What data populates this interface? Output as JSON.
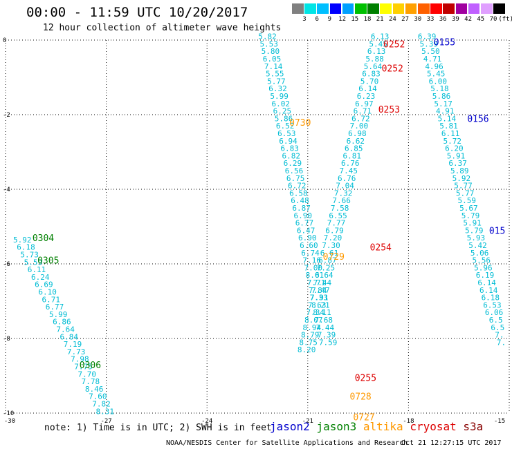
{
  "title": "00:00 - 11:59 UTC 10/20/2017",
  "subtitle": "12 hour collection of altimeter wave heights",
  "legend": {
    "colors": [
      "#808080",
      "#00e5e5",
      "#00bfff",
      "#0000ff",
      "#00a0ff",
      "#00c000",
      "#008000",
      "#ffff00",
      "#ffd000",
      "#ffa000",
      "#ff6000",
      "#ff0000",
      "#c00000",
      "#a000a0",
      "#c060ff",
      "#e0a0ff",
      "#000000"
    ],
    "labels": [
      "3",
      "6",
      "9",
      "12",
      "15",
      "18",
      "21",
      "24",
      "27",
      "30",
      "33",
      "36",
      "39",
      "42",
      "45",
      "70",
      "(ft)"
    ]
  },
  "axes": {
    "x_ticks": [
      -30,
      -27,
      -24,
      -21,
      -18,
      -15
    ],
    "x_tick_labels": [
      "-30",
      "-27",
      "-24",
      "-21",
      "-18",
      "-15"
    ],
    "y_ticks": [
      0,
      -2,
      -4,
      -6,
      -8,
      -10
    ],
    "y_tick_labels": [
      "0",
      "-2",
      "-4",
      "-6",
      "-8",
      "-10"
    ]
  },
  "note": "note: 1) Time is in UTC; 2) SWH is in feet",
  "satellites": [
    {
      "name": "jason2",
      "color": "#0000cc"
    },
    {
      "name": "jason3",
      "color": "#008000"
    },
    {
      "name": "altika",
      "color": "#ff9900"
    },
    {
      "name": "cryosat",
      "color": "#dd0000"
    },
    {
      "name": "s3a",
      "color": "#880000"
    }
  ],
  "footer_left": "NOAA/NESDIS Center for Satellite Applications and Research",
  "footer_right": "Oct 21 12:27:15 UTC 2017",
  "tracks": [
    {
      "name": "jason3-west",
      "color": "#00bcd4",
      "lon0": -29.5,
      "lat0": -5.35,
      "dlon": 0.107,
      "dlat": -0.2,
      "values": [
        "5.92",
        "6.18",
        "5.73",
        "5.59",
        "6.11",
        "6.24",
        "6.69",
        "6.10",
        "6.71",
        "6.77",
        "5.99",
        "6.86",
        "7.64",
        "6.84",
        "7.19",
        "7.73",
        "7.98",
        "7.75",
        "7.70",
        "7.78",
        "8.46",
        "7.60",
        "7.82",
        "8.31"
      ]
    },
    {
      "name": "altika-track",
      "color": "#00bcd4",
      "lon0": -22.2,
      "lat0": 0.1,
      "dlon": 0.044,
      "dlat": -0.2,
      "values": [
        "5.82",
        "5.53",
        "5.80",
        "6.05",
        "7.14",
        "5.55",
        "5.77",
        "6.32",
        "5.99",
        "6.02",
        "6.25",
        "5.86",
        "6.52",
        "6.53",
        "6.94",
        "6.83",
        "6.82",
        "6.29",
        "6.56",
        "6.75",
        "6.72",
        "6.58",
        "6.48",
        "6.87",
        "6.90",
        "6.77",
        "6.47",
        "6.90",
        "6.60",
        "6.74",
        "7.16",
        "7.00",
        "8.01",
        "7.71",
        "7.84",
        "7.91",
        "8.21",
        "8.11",
        "7.68",
        "7.44",
        "7.39",
        "7.59"
      ]
    },
    {
      "name": "cryosat-track",
      "color": "#00bcd4",
      "lon0": -18.85,
      "lat0": 0.1,
      "dlon": -0.052,
      "dlat": -0.2,
      "values": [
        "6.13",
        "5.45",
        "6.13",
        "5.88",
        "5.64",
        "6.83",
        "5.70",
        "6.14",
        "6.23",
        "6.97",
        "6.71",
        "6.72",
        "7.00",
        "6.98",
        "6.62",
        "6.85",
        "6.81",
        "6.76",
        "7.45",
        "6.76",
        "7.04",
        "7.32",
        "7.66",
        "7.58",
        "6.55",
        "7.77",
        "6.79",
        "7.20",
        "7.30",
        "6.61",
        "6.87",
        "7.25",
        "6.64",
        "7.44",
        "7.47",
        "7.33",
        "7.63",
        "7.34",
        "8.07",
        "8.94",
        "8.79",
        "8.75",
        "8.20"
      ]
    },
    {
      "name": "jason2-track",
      "color": "#00bcd4",
      "lon0": -17.45,
      "lat0": 0.1,
      "dlon": 0.054,
      "dlat": -0.2,
      "values": [
        "6.39",
        "5.39",
        "5.50",
        "4.71",
        "4.96",
        "5.45",
        "6.00",
        "5.18",
        "5.86",
        "5.17",
        "4.91",
        "5.14",
        "5.81",
        "6.11",
        "5.72",
        "6.20",
        "5.91",
        "6.37",
        "5.89",
        "5.92",
        "5.77",
        "5.77",
        "5.59",
        "5.67",
        "5.79",
        "5.91",
        "5.79",
        "5.93",
        "5.42",
        "5.06",
        "5.56",
        "5.96",
        "6.19",
        "6.14",
        "6.14",
        "6.18",
        "6.53",
        "6.06",
        "6.5",
        "6.5",
        "7.",
        "7."
      ]
    }
  ],
  "pass_labels": [
    {
      "text": "0304",
      "color": "#008000",
      "lon": -29.2,
      "lat": -5.3
    },
    {
      "text": "0305",
      "color": "#008000",
      "lon": -29.05,
      "lat": -5.9
    },
    {
      "text": "0306",
      "color": "#008000",
      "lon": -27.8,
      "lat": -8.7
    },
    {
      "text": "0730",
      "color": "#ff9900",
      "lon": -21.55,
      "lat": -2.2
    },
    {
      "text": "0729",
      "color": "#ff9900",
      "lon": -20.55,
      "lat": -5.8
    },
    {
      "text": "0728",
      "color": "#ff9900",
      "lon": -19.75,
      "lat": -9.55
    },
    {
      "text": "0727",
      "color": "#ff9900",
      "lon": -19.65,
      "lat": -10.1
    },
    {
      "text": "0252",
      "color": "#dd0000",
      "lon": -18.75,
      "lat": -0.1
    },
    {
      "text": "0252",
      "color": "#dd0000",
      "lon": -18.8,
      "lat": -0.75
    },
    {
      "text": "0253",
      "color": "#dd0000",
      "lon": -18.9,
      "lat": -1.85
    },
    {
      "text": "0254",
      "color": "#dd0000",
      "lon": -19.15,
      "lat": -5.55
    },
    {
      "text": "0255",
      "color": "#dd0000",
      "lon": -19.6,
      "lat": -9.05
    },
    {
      "text": "0155",
      "color": "#0000cc",
      "lon": -17.25,
      "lat": -0.05
    },
    {
      "text": "0156",
      "color": "#0000cc",
      "lon": -16.25,
      "lat": -2.1
    },
    {
      "text": "015",
      "color": "#0000cc",
      "lon": -15.6,
      "lat": -5.1
    }
  ]
}
